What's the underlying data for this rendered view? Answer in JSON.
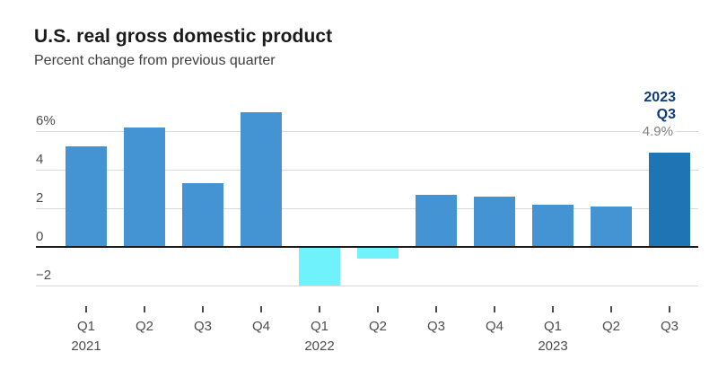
{
  "header": {
    "title": "U.S. real gross domestic product",
    "subtitle": "Percent change from previous quarter"
  },
  "chart_data": {
    "type": "bar",
    "title": "U.S. real gross domestic product",
    "subtitle": "Percent change from previous quarter",
    "categories": [
      "Q1",
      "Q2",
      "Q3",
      "Q4",
      "Q1",
      "Q2",
      "Q3",
      "Q4",
      "Q1",
      "Q2",
      "Q3"
    ],
    "year_labels": [
      {
        "index": 0,
        "label": "2021"
      },
      {
        "index": 4,
        "label": "2022"
      },
      {
        "index": 8,
        "label": "2023"
      }
    ],
    "values": [
      5.2,
      6.2,
      3.3,
      7.0,
      -2.0,
      -0.6,
      2.7,
      2.6,
      2.2,
      2.1,
      4.9
    ],
    "highlight_index": 10,
    "y_ticks": [
      {
        "value": 6,
        "label": "6%"
      },
      {
        "value": 4,
        "label": "4"
      },
      {
        "value": 2,
        "label": "2"
      },
      {
        "value": 0,
        "label": "0"
      },
      {
        "value": -2,
        "label": "−2"
      }
    ],
    "ylim": [
      -2.8,
      7.6
    ],
    "grid": true,
    "legend": false,
    "xlabel": "",
    "ylabel": "",
    "annotation": {
      "line1": "2023",
      "line2": "Q3",
      "value": "4.9%"
    },
    "colors": {
      "positive_bar": "#4494d4",
      "negative_bar": "#6ff2fc",
      "highlight_bar": "#1f74b4",
      "gridline": "#d9d9d9",
      "zero_line": "#1a1a1a",
      "annotation_text": "#0d3b7c",
      "annotation_value": "#808080"
    }
  }
}
